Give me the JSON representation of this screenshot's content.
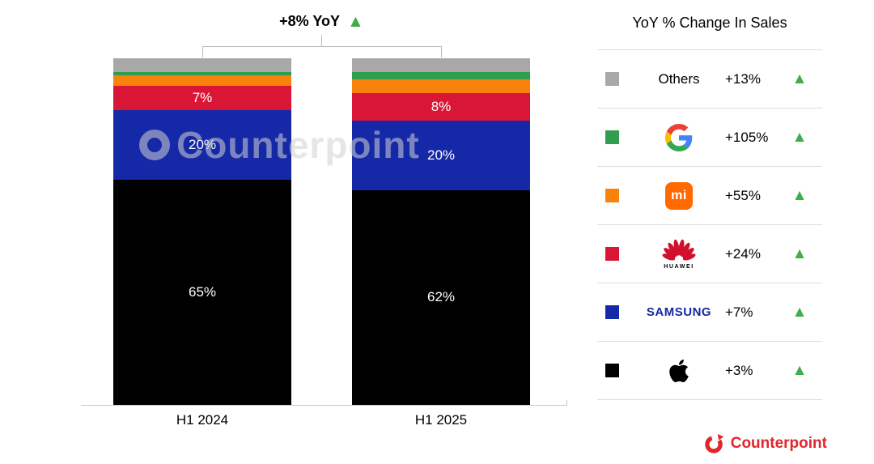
{
  "title": {
    "text": "+8% YoY",
    "arrow": "▲"
  },
  "watermark": "Counterpoint",
  "legend": {
    "title": "YoY % Change In Sales",
    "up_arrow": "▲",
    "rows": [
      {
        "brand": "Others",
        "change": "+13%",
        "color": "#a8a8a8"
      },
      {
        "brand": "Google",
        "change": "+105%",
        "color": "#2f9e4f"
      },
      {
        "brand": "Xiaomi",
        "glyph": "mi",
        "change": "+55%",
        "color": "#f8820c"
      },
      {
        "brand": "Huawei",
        "wordmark": "HUAWEI",
        "change": "+24%",
        "color": "#d91636"
      },
      {
        "brand": "Samsung",
        "wordmark": "SAMSUNG",
        "change": "+7%",
        "color": "#1528a7"
      },
      {
        "brand": "Apple",
        "change": "+3%",
        "color": "#000000"
      }
    ]
  },
  "chart_data": {
    "type": "bar",
    "stacked": true,
    "unit": "%",
    "title": "+8% YoY",
    "categories": [
      "H1 2024",
      "H1 2025"
    ],
    "series": [
      {
        "name": "Apple",
        "color": "#000000",
        "values": [
          65,
          62
        ],
        "labels": [
          "65%",
          "62%"
        ]
      },
      {
        "name": "Samsung",
        "color": "#1528a7",
        "values": [
          20,
          20
        ],
        "labels": [
          "20%",
          "20%"
        ]
      },
      {
        "name": "Huawei",
        "color": "#d91636",
        "values": [
          7,
          8
        ],
        "labels": [
          "7%",
          "8%"
        ]
      },
      {
        "name": "Xiaomi",
        "color": "#f8820c",
        "values": [
          3,
          4
        ],
        "labels": [
          "",
          ""
        ]
      },
      {
        "name": "Google",
        "color": "#2f9e4f",
        "values": [
          1,
          2
        ],
        "labels": [
          "",
          ""
        ]
      },
      {
        "name": "Others",
        "color": "#a8a8a8",
        "values": [
          4,
          4
        ],
        "labels": [
          "",
          ""
        ]
      }
    ],
    "ylim": [
      0,
      100
    ],
    "legend_position": "right",
    "grid": false
  },
  "footer": {
    "brand": "Counterpoint"
  }
}
